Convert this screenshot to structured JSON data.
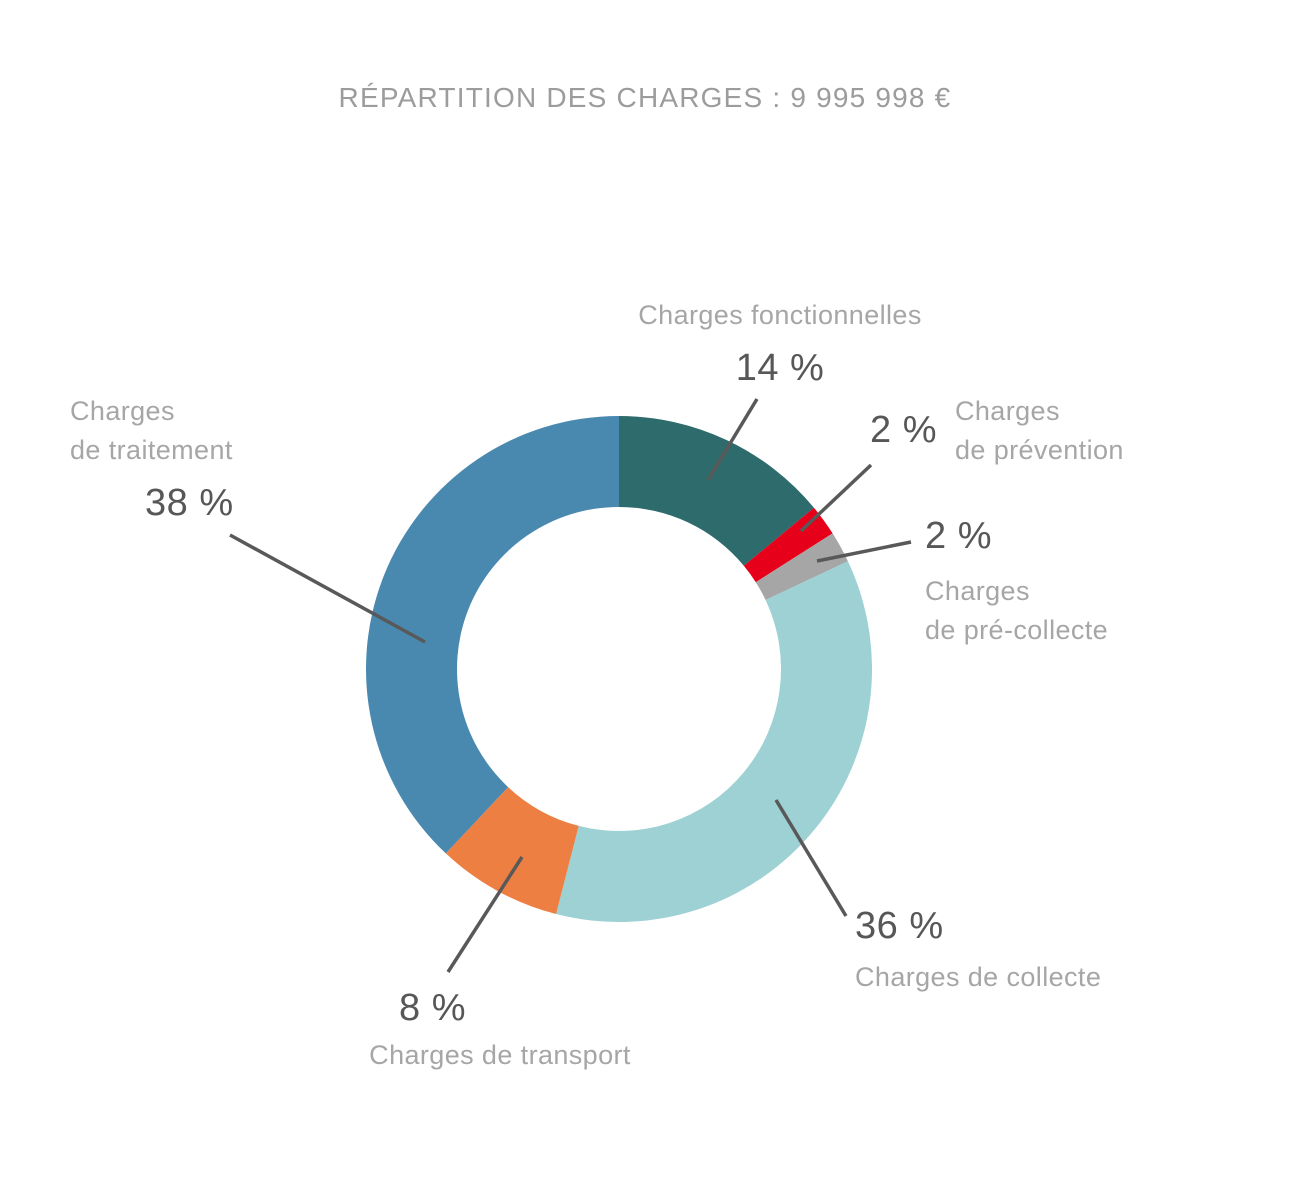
{
  "title": "RÉPARTITION DES CHARGES : 9 995 998 €",
  "chart_data": {
    "type": "pie",
    "subtype": "donut",
    "title": "RÉPARTITION DES CHARGES : 9 995 998 €",
    "total_value_label": "9 995 998 €",
    "units": "%",
    "start_angle_deg": 0,
    "direction": "clockwise",
    "legend": "none",
    "slices": [
      {
        "name": "Charges fonctionnelles",
        "name_lines": [
          "Charges fonctionnelles"
        ],
        "value": 14,
        "value_label": "14 %",
        "color": "#2E6B6C"
      },
      {
        "name": "Charges de prévention",
        "name_lines": [
          "Charges",
          "de prévention"
        ],
        "value": 2,
        "value_label": "2 %",
        "color": "#E6001A"
      },
      {
        "name": "Charges de pré-collecte",
        "name_lines": [
          "Charges",
          "de pré-collecte"
        ],
        "value": 2,
        "value_label": "2 %",
        "color": "#A6A6A6"
      },
      {
        "name": "Charges de collecte",
        "name_lines": [
          "Charges de collecte"
        ],
        "value": 36,
        "value_label": "36 %",
        "color": "#9DD1D3"
      },
      {
        "name": "Charges de transport",
        "name_lines": [
          "Charges de transport"
        ],
        "value": 8,
        "value_label": "8 %",
        "color": "#EE7F42"
      },
      {
        "name": "Charges de traitement",
        "name_lines": [
          "Charges",
          "de traitement"
        ],
        "value": 38,
        "value_label": "38 %",
        "color": "#4A89AF"
      }
    ],
    "colors": {
      "leader_line": "#595959",
      "value_text": "#575757",
      "label_text": "#A6A6A6",
      "title_text": "#9C9C9C",
      "background": "#FFFFFF"
    }
  }
}
